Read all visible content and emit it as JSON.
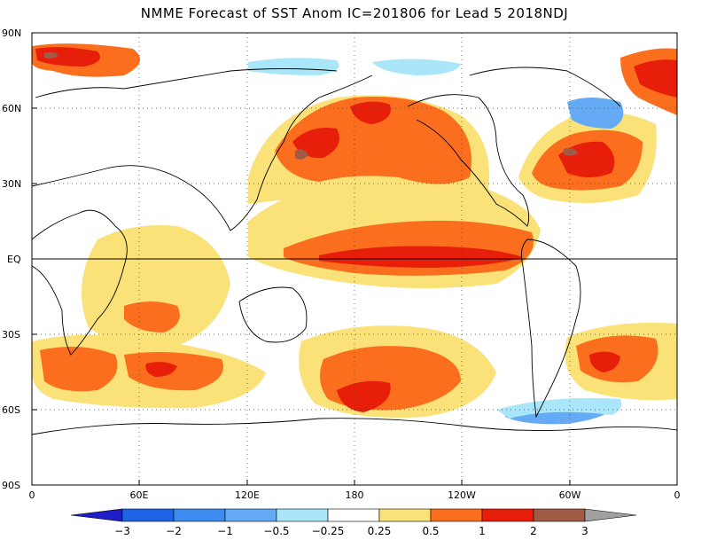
{
  "title": "NMME Forecast of SST Anom IC=201806 for Lead 5 2018NDJ",
  "axes": {
    "y_labels": [
      "90N",
      "60N",
      "30N",
      "EQ",
      "30S",
      "60S",
      "90S"
    ],
    "x_labels": [
      "0",
      "60E",
      "120E",
      "180",
      "120W",
      "60W",
      "0"
    ]
  },
  "colorbar": {
    "labels": [
      "−3",
      "−2",
      "−1",
      "−0.5",
      "−0.25",
      "0.25",
      "0.5",
      "1",
      "2",
      "3"
    ],
    "colors": [
      "#1e1ec8",
      "#1e64e6",
      "#3c8cf0",
      "#64aaf5",
      "#aae6fa",
      "#ffffff",
      "#fae178",
      "#fa6e1e",
      "#e61e0a",
      "#a05a46",
      "#a0a0a0"
    ]
  }
}
